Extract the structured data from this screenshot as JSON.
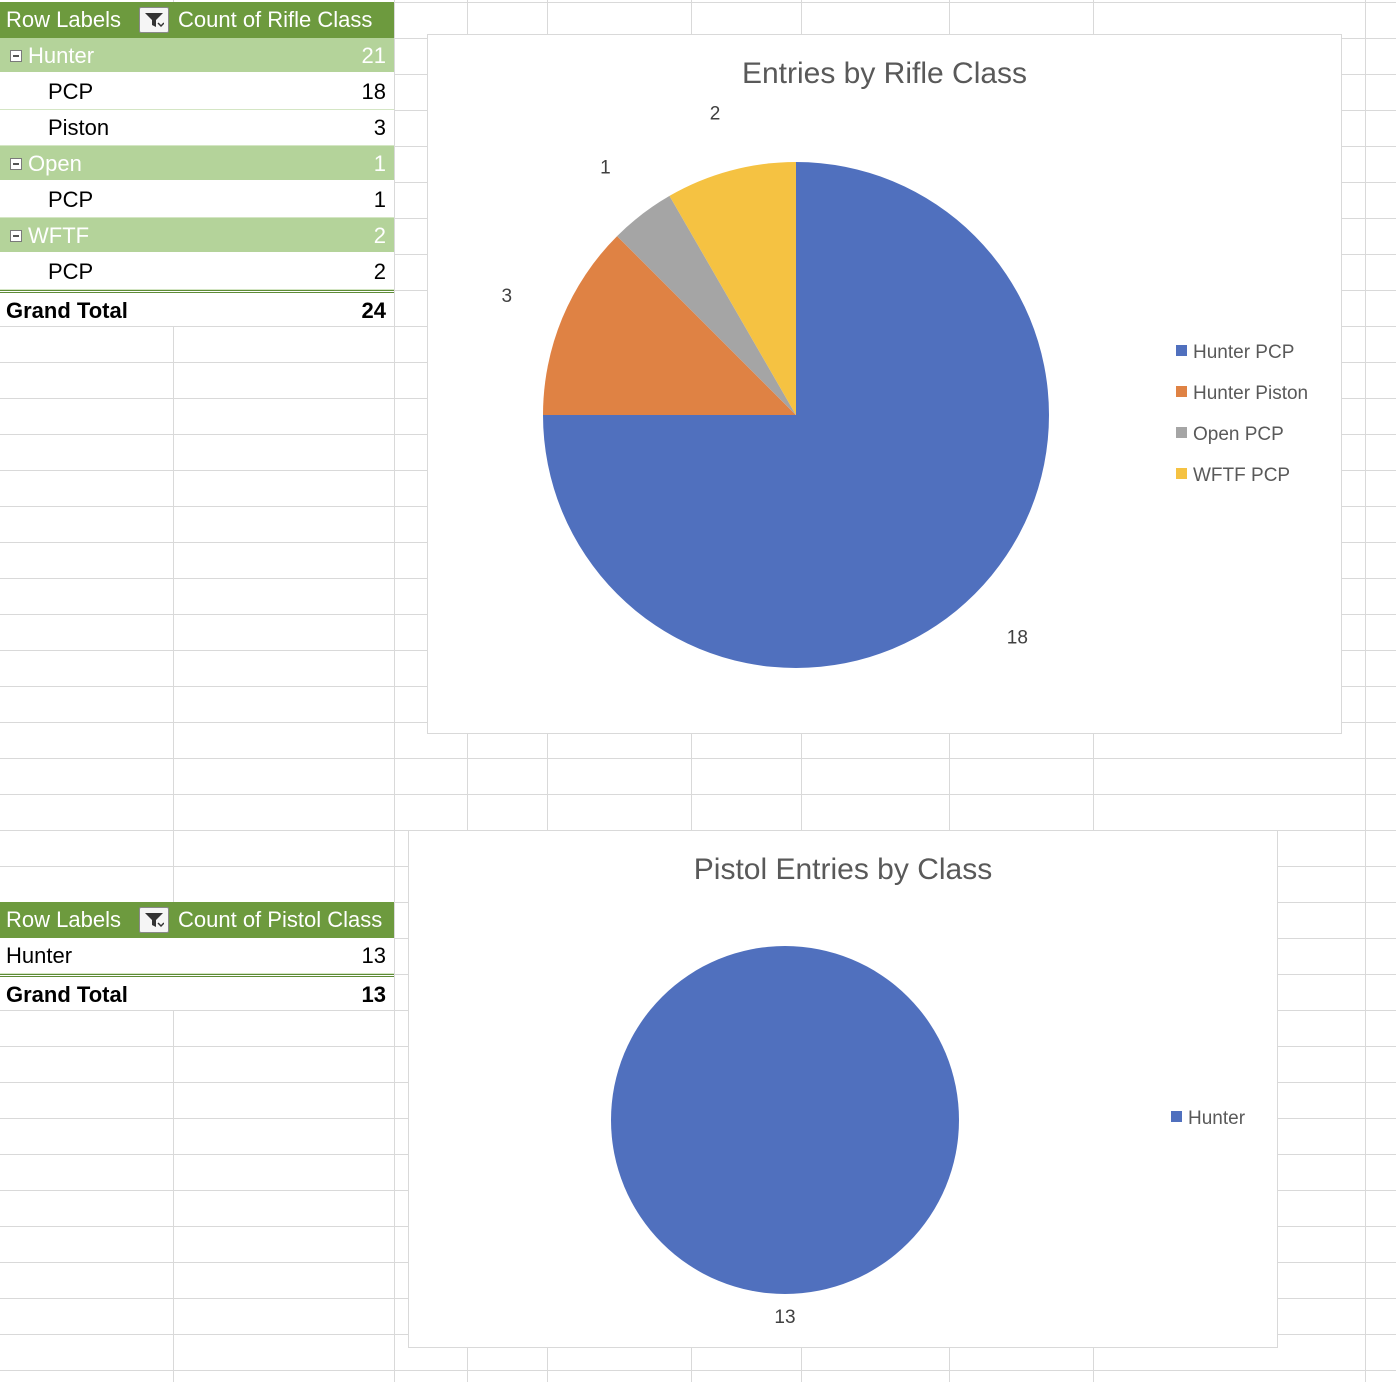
{
  "rifle_pivot": {
    "header": {
      "row_labels": "Row Labels",
      "column": "Count of Rifle Class"
    },
    "rows": [
      {
        "type": "group",
        "label": "Hunter",
        "value": "21"
      },
      {
        "type": "item",
        "label": "PCP",
        "value": "18"
      },
      {
        "type": "item",
        "label": "Piston",
        "value": "3"
      },
      {
        "type": "group",
        "label": "Open",
        "value": "1"
      },
      {
        "type": "item",
        "label": "PCP",
        "value": "1"
      },
      {
        "type": "group",
        "label": "WFTF",
        "value": "2"
      },
      {
        "type": "item",
        "label": "PCP",
        "value": "2"
      }
    ],
    "total": {
      "label": "Grand Total",
      "value": "24"
    }
  },
  "pistol_pivot": {
    "header": {
      "row_labels": "Row Labels",
      "column": "Count of Pistol Class"
    },
    "rows": [
      {
        "type": "plain",
        "label": "Hunter",
        "value": "13"
      }
    ],
    "total": {
      "label": "Grand Total",
      "value": "13"
    }
  },
  "chart_data": [
    {
      "type": "pie",
      "title": "Entries by Rifle Class",
      "categories": [
        "Hunter PCP",
        "Hunter Piston",
        "Open PCP",
        "WFTF PCP"
      ],
      "values": [
        18,
        3,
        1,
        2
      ],
      "colors": [
        "#5070be",
        "#df8244",
        "#a5a5a5",
        "#f5c242"
      ],
      "data_labels": [
        "18",
        "3",
        "1",
        "2"
      ],
      "legend": "right"
    },
    {
      "type": "pie",
      "title": "Pistol Entries by Class",
      "categories": [
        "Hunter"
      ],
      "values": [
        13
      ],
      "colors": [
        "#5070be"
      ],
      "data_labels": [
        "13"
      ],
      "legend": "right"
    }
  ]
}
